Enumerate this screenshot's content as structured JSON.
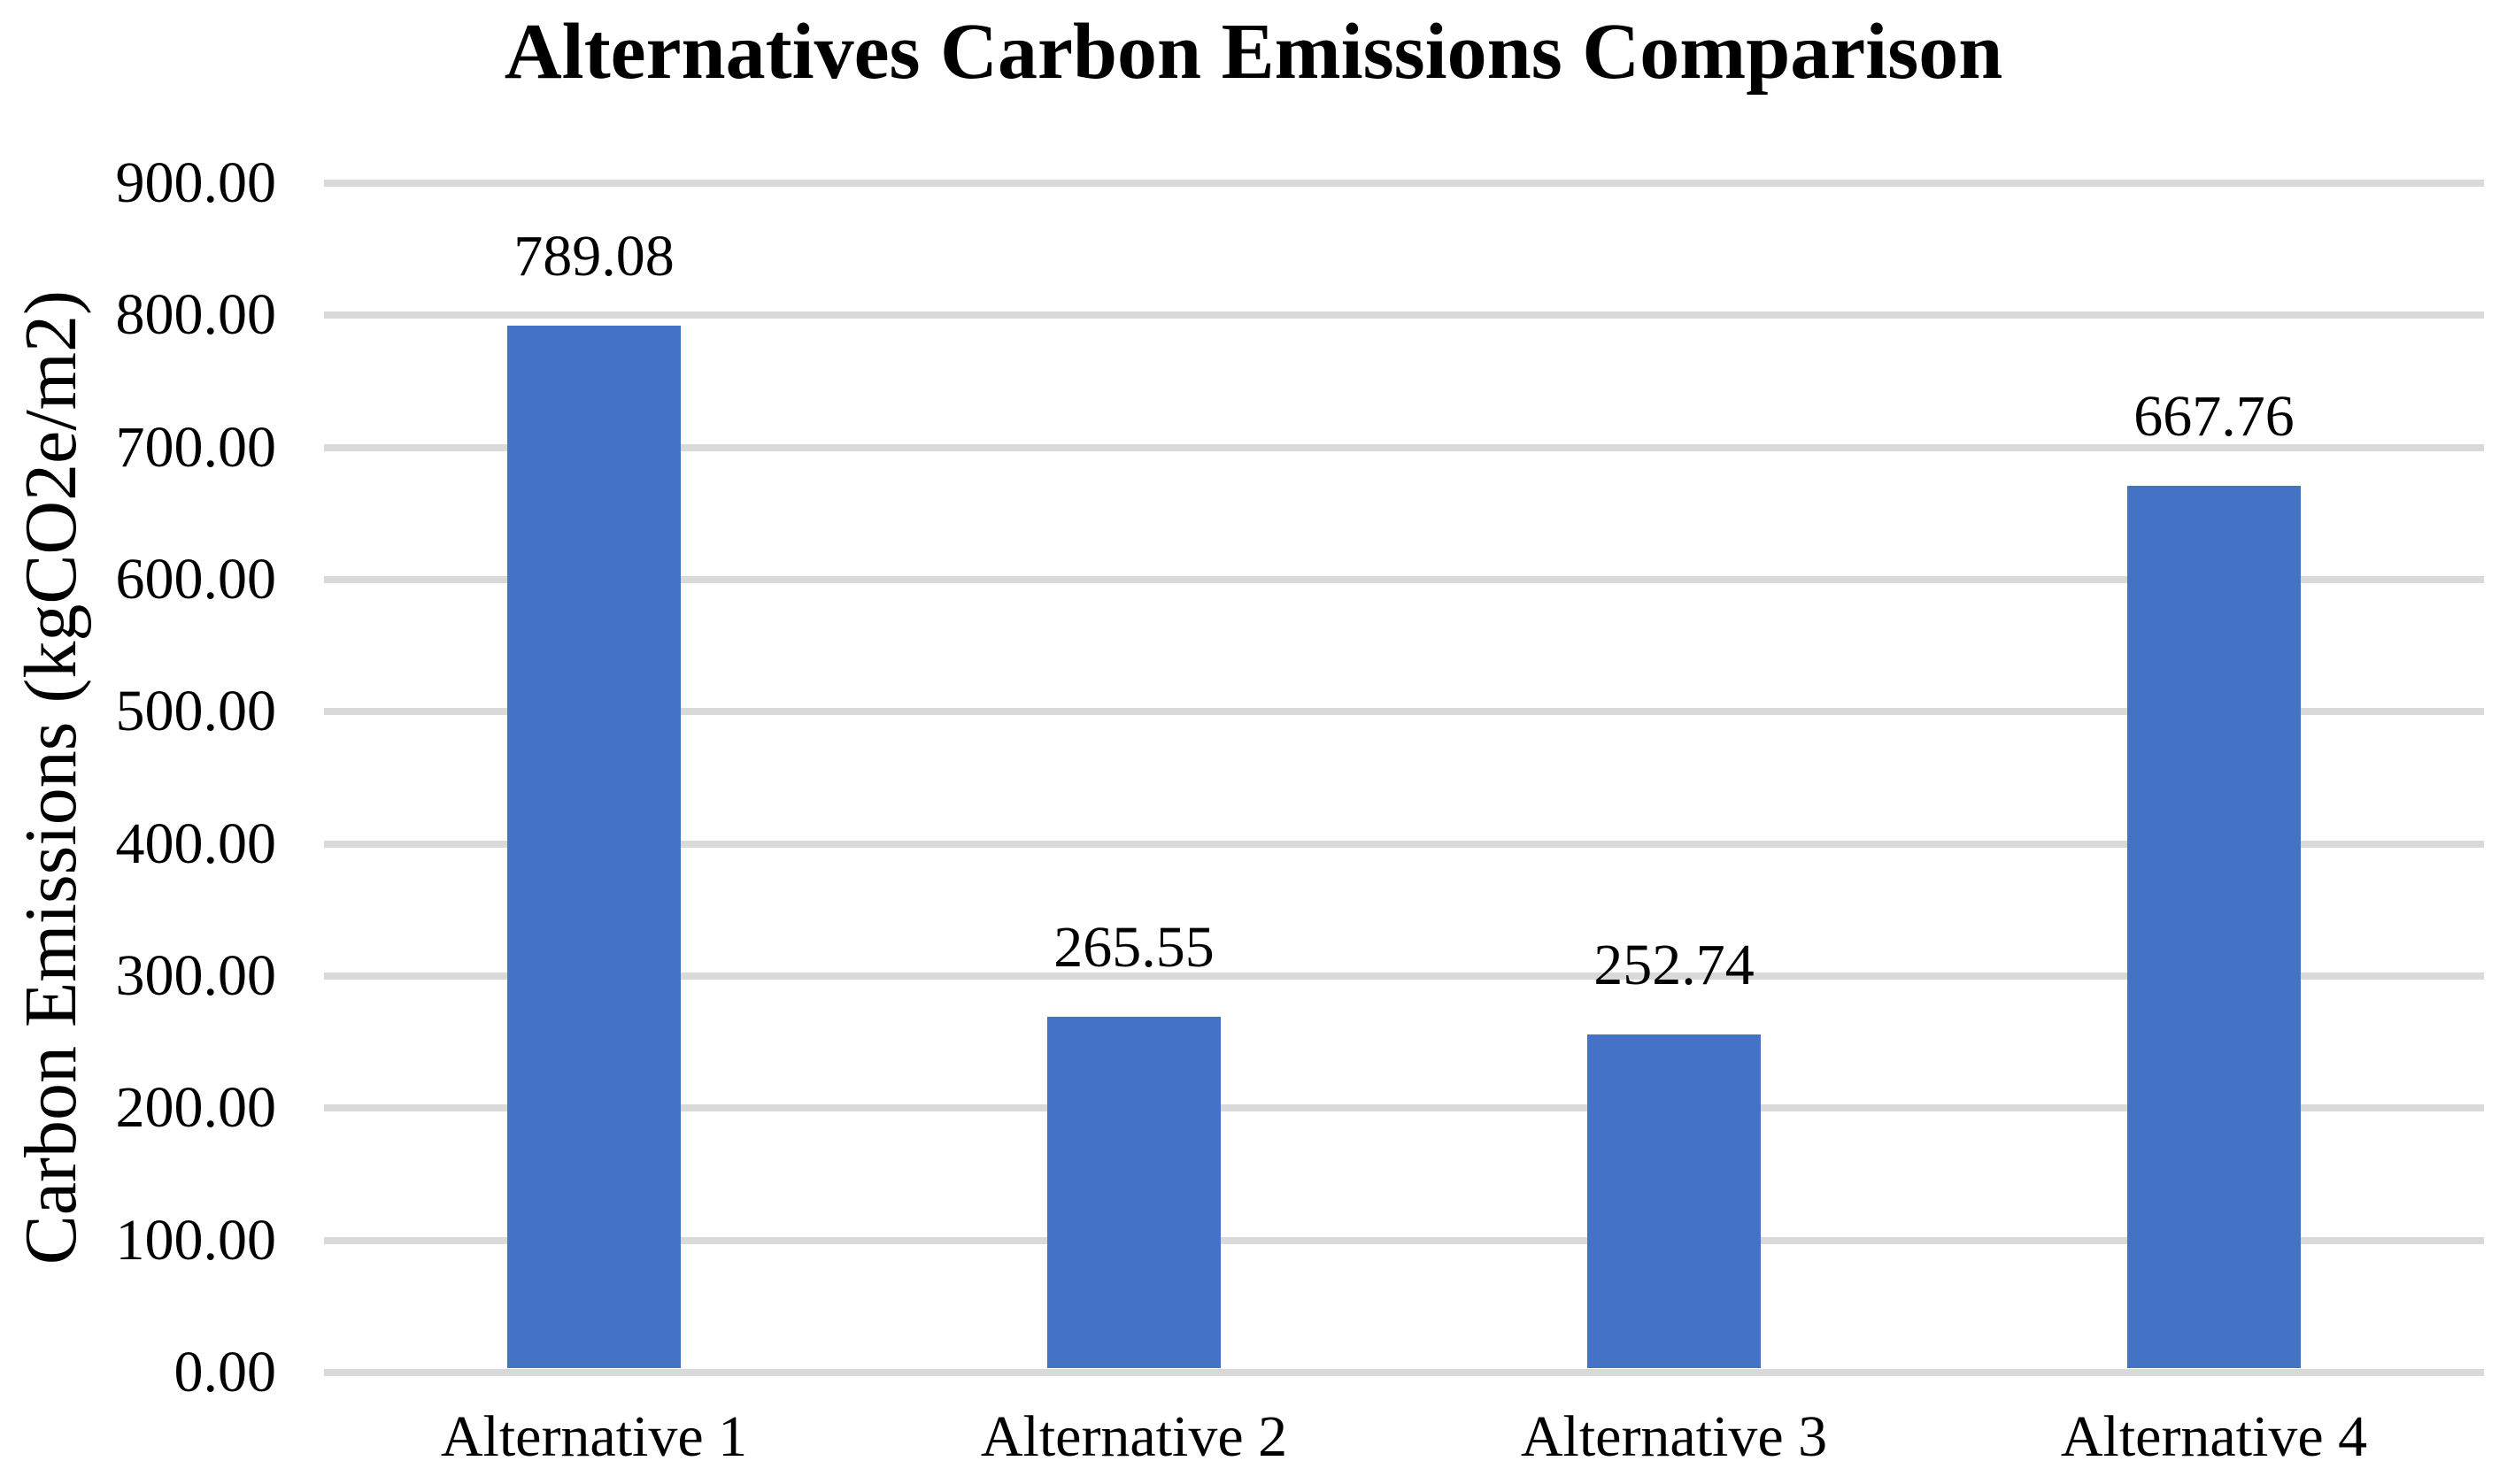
{
  "chart_data": {
    "type": "bar",
    "title": "Alternatives Carbon Emissions Comparison",
    "xlabel": "",
    "ylabel": "Carbon Emissions (kgCO2e/m2)",
    "categories": [
      "Alternative 1",
      "Alternative 2",
      "Alternative 3",
      "Alternative 4"
    ],
    "values": [
      789.08,
      265.55,
      252.74,
      667.76
    ],
    "value_labels": [
      "789.08",
      "265.55",
      "252.74",
      "667.76"
    ],
    "ylim": [
      0,
      900
    ],
    "ytick_step": 100,
    "yticks": [
      {
        "value": 0,
        "label": "0.00"
      },
      {
        "value": 100,
        "label": "100.00"
      },
      {
        "value": 200,
        "label": "200.00"
      },
      {
        "value": 300,
        "label": "300.00"
      },
      {
        "value": 400,
        "label": "400.00"
      },
      {
        "value": 500,
        "label": "500.00"
      },
      {
        "value": 600,
        "label": "600.00"
      },
      {
        "value": 700,
        "label": "700.00"
      },
      {
        "value": 800,
        "label": "800.00"
      },
      {
        "value": 900,
        "label": "900.00"
      }
    ],
    "grid": true,
    "legend": "none",
    "bar_color": "#4472C4",
    "gridline_color": "#D9D9D9",
    "background_color": "#FFFFFF",
    "text_color": "#000000"
  }
}
